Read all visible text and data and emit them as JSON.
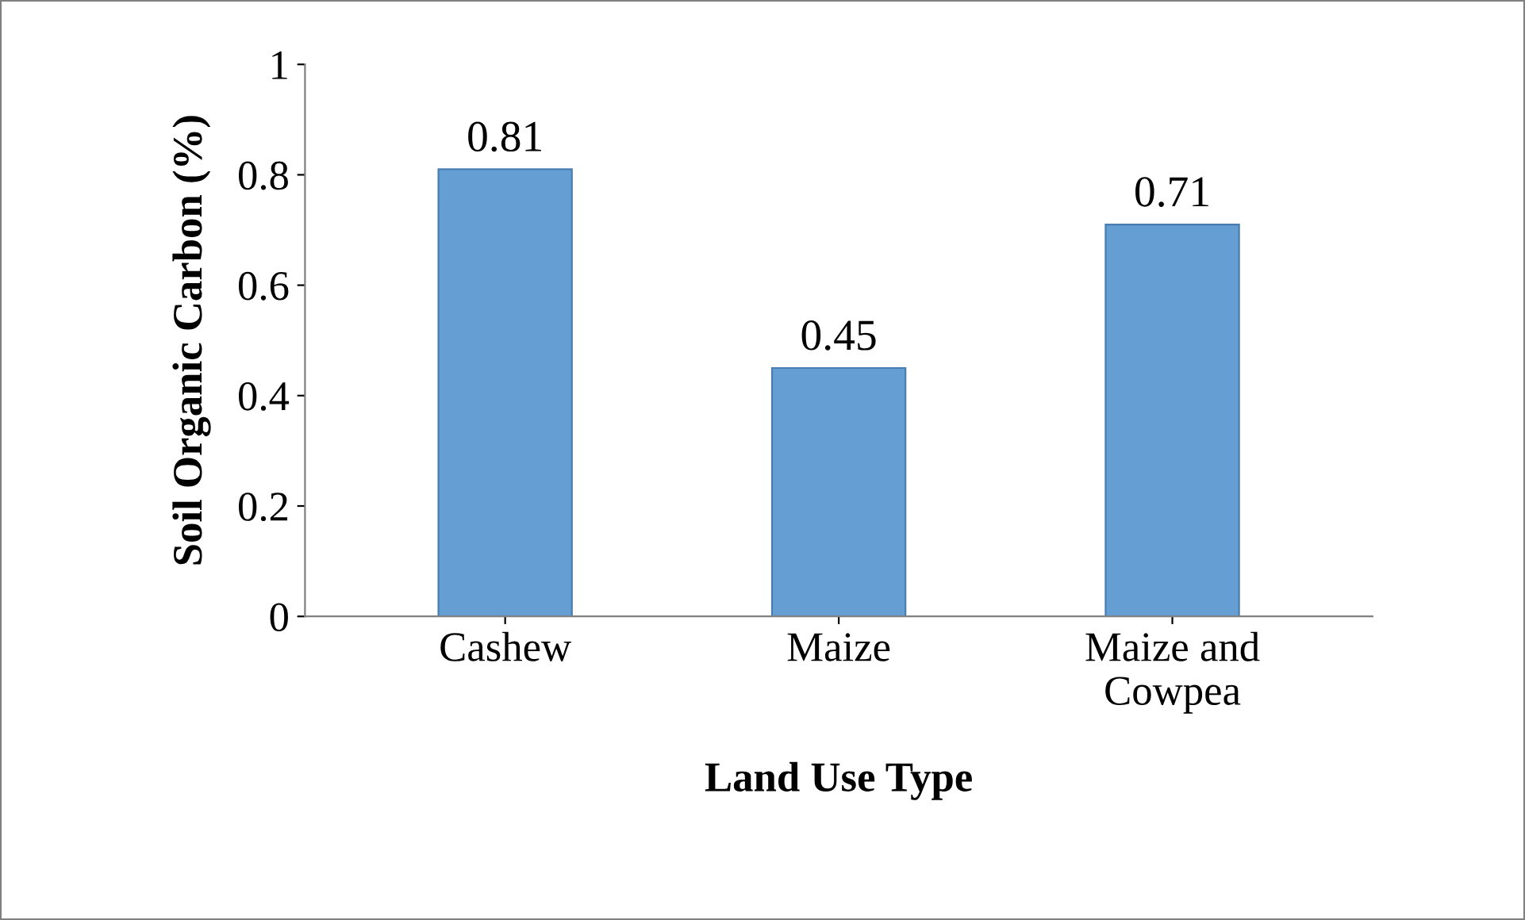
{
  "chart_data": {
    "type": "bar",
    "xlabel": "Land Use Type",
    "ylabel": "Soil Organic Carbon (%)",
    "categories": [
      "Cashew",
      "Maize",
      "Maize and\nCowpea"
    ],
    "values": [
      0.81,
      0.45,
      0.71
    ],
    "color": "#659ed2",
    "ylim": [
      0,
      1
    ],
    "yticks": [
      0,
      0.2,
      0.4,
      0.6,
      0.8,
      1
    ],
    "data_labels": true,
    "grid": false
  }
}
